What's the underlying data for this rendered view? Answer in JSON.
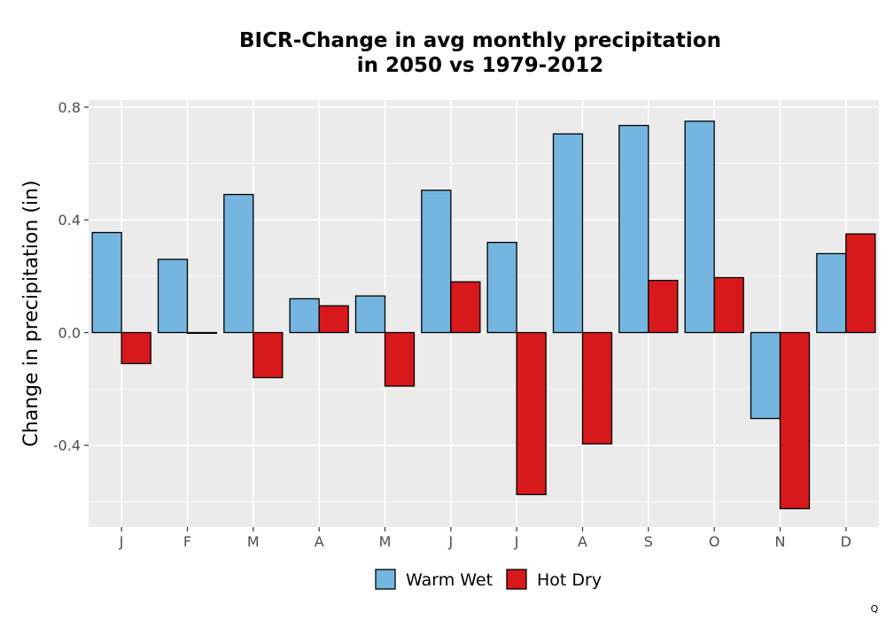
{
  "chart_data": {
    "type": "bar",
    "title_line1": "BICR-Change in avg monthly precipitation",
    "title_line2": "in 2050 vs 1979-2012",
    "xlabel": "",
    "ylabel": "Change in precipitation (in)",
    "categories": [
      "J",
      "F",
      "M",
      "A",
      "M",
      "J",
      "J",
      "A",
      "S",
      "O",
      "N",
      "D"
    ],
    "series": [
      {
        "name": "Warm Wet",
        "color": "#74b6e0",
        "values": [
          0.355,
          0.26,
          0.49,
          0.12,
          0.13,
          0.505,
          0.32,
          0.705,
          0.735,
          0.75,
          -0.305,
          0.28
        ]
      },
      {
        "name": "Hot Dry",
        "color": "#d7191c",
        "values": [
          -0.11,
          0.0,
          -0.16,
          0.095,
          -0.19,
          0.18,
          -0.575,
          -0.395,
          0.185,
          0.195,
          -0.625,
          0.35
        ]
      }
    ],
    "ylim": [
      -0.69,
      0.825
    ],
    "yticks": [
      0.8,
      0.4,
      0.0,
      -0.4
    ],
    "ytick_labels": [
      "0.8",
      "0.4",
      "0.0",
      "-0.4"
    ],
    "grid": true,
    "legend_position": "bottom",
    "panel_background": "#ebebeb",
    "grid_color": "#ffffff"
  },
  "corner_label": "Q"
}
